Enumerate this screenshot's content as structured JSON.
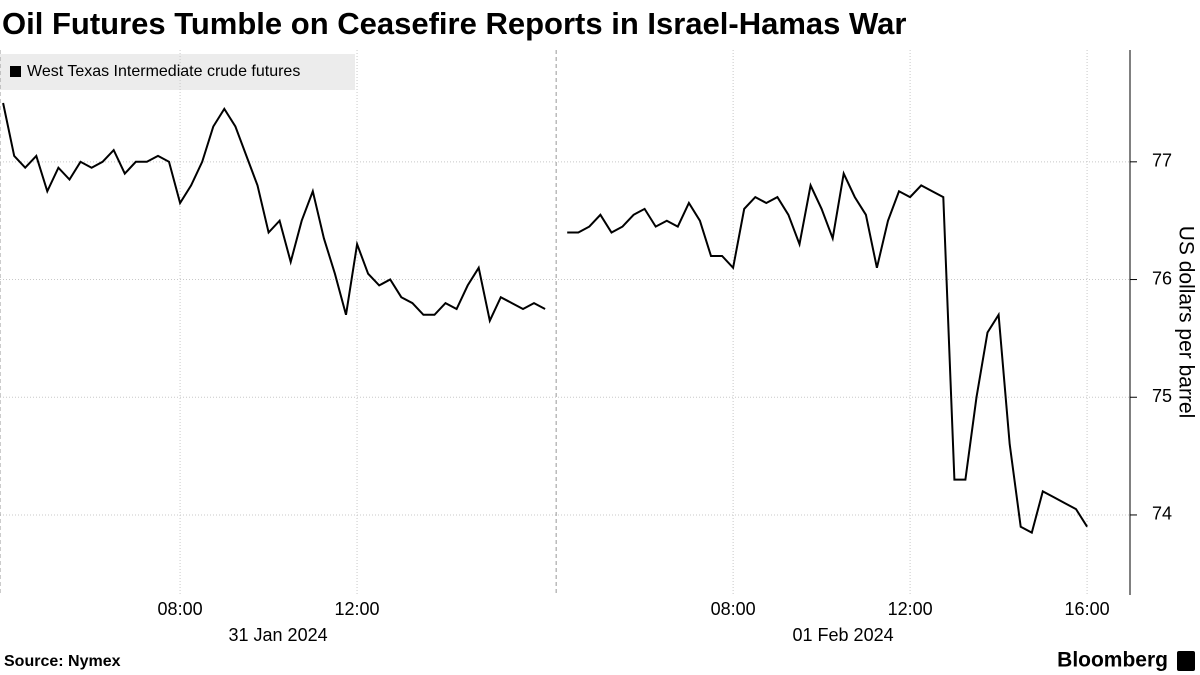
{
  "chart_data": {
    "type": "line",
    "title": "Oil Futures Tumble on Ceasefire Reports in Israel-Hamas War",
    "y_axis_label": "US dollars per barrel",
    "source": "Source: Nymex",
    "brand": "Bloomberg",
    "legend_position": "top-left",
    "grid": true,
    "xlim": [
      3.93,
      29.47
    ],
    "ylim": [
      73.32,
      77.95
    ],
    "yticks": [
      74,
      75,
      76,
      77
    ],
    "xticks": [
      {
        "value": 8,
        "label": "08:00"
      },
      {
        "value": 12,
        "label": "12:00"
      },
      {
        "value": 20.5,
        "label": "08:00"
      },
      {
        "value": 24.5,
        "label": "12:00"
      },
      {
        "value": 28.5,
        "label": "16:00"
      }
    ],
    "days": [
      {
        "start": 3.93,
        "label": "31 Jan 2024"
      },
      {
        "start": 16.5,
        "label": "01 Feb 2024"
      }
    ],
    "x": [
      4.0,
      4.25,
      4.5,
      4.75,
      5.0,
      5.25,
      5.5,
      5.75,
      6.0,
      6.25,
      6.5,
      6.75,
      7.0,
      7.25,
      7.5,
      7.75,
      8.0,
      8.25,
      8.5,
      8.75,
      9.0,
      9.25,
      9.5,
      9.75,
      10.0,
      10.25,
      10.5,
      10.75,
      11.0,
      11.25,
      11.5,
      11.75,
      12.0,
      12.25,
      12.5,
      12.75,
      13.0,
      13.25,
      13.5,
      13.75,
      14.0,
      14.25,
      14.5,
      14.75,
      15.0,
      15.25,
      15.5,
      15.75,
      16.0,
      16.25,
      16.5,
      16.75,
      17.0,
      17.25,
      17.5,
      17.75,
      18.0,
      18.25,
      18.5,
      18.75,
      19.0,
      19.25,
      19.5,
      19.75,
      20.0,
      20.25,
      20.5,
      20.75,
      21.0,
      21.25,
      21.5,
      21.75,
      22.0,
      22.25,
      22.5,
      22.75,
      23.0,
      23.25,
      23.5,
      23.75,
      24.0,
      24.25,
      24.5,
      24.75,
      25.0,
      25.25,
      25.5,
      25.75,
      26.0,
      26.25,
      26.5,
      26.75,
      27.0,
      27.25,
      27.5,
      27.75,
      28.0,
      28.25,
      28.5
    ],
    "series": [
      {
        "name": "West Texas Intermediate crude futures",
        "color": "#000000",
        "values": [
          77.5,
          77.05,
          76.95,
          77.05,
          76.75,
          76.95,
          76.85,
          77.0,
          76.95,
          77.0,
          77.1,
          76.9,
          77.0,
          77.0,
          77.05,
          77.0,
          76.65,
          76.8,
          77.0,
          77.3,
          77.45,
          77.3,
          77.05,
          76.8,
          76.4,
          76.5,
          76.15,
          76.5,
          76.75,
          76.35,
          76.05,
          75.7,
          76.3,
          76.05,
          75.95,
          76.0,
          75.85,
          75.8,
          75.7,
          75.7,
          75.8,
          75.75,
          75.95,
          76.1,
          75.65,
          75.85,
          75.8,
          75.75,
          75.8,
          75.75,
          null,
          76.4,
          76.4,
          76.45,
          76.55,
          76.4,
          76.45,
          76.55,
          76.6,
          76.45,
          76.5,
          76.45,
          76.65,
          76.5,
          76.2,
          76.2,
          76.1,
          76.6,
          76.7,
          76.65,
          76.7,
          76.55,
          76.3,
          76.8,
          76.6,
          76.35,
          76.9,
          76.7,
          76.55,
          76.1,
          76.5,
          76.75,
          76.7,
          76.8,
          76.75,
          76.7,
          74.3,
          74.3,
          75.0,
          75.55,
          75.7,
          74.6,
          73.9,
          73.85,
          74.2,
          74.15,
          74.1,
          74.05,
          73.9
        ]
      }
    ]
  }
}
